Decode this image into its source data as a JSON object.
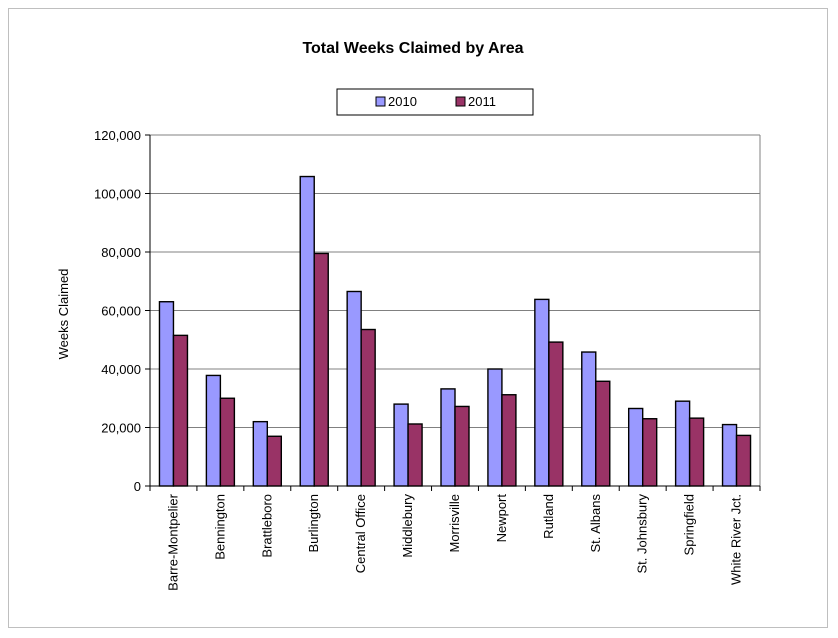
{
  "chart_data": {
    "type": "bar",
    "title": "Total Weeks Claimed by Area",
    "xlabel": "",
    "ylabel": "Weeks Claimed",
    "ylim": [
      0,
      120000
    ],
    "yticks": [
      0,
      20000,
      40000,
      60000,
      80000,
      100000,
      120000
    ],
    "ytick_labels": [
      "0",
      "20,000",
      "40,000",
      "60,000",
      "80,000",
      "100,000",
      "120,000"
    ],
    "grid": true,
    "legend": "top-center",
    "categories": [
      "Barre-Montpelier",
      "Bennington",
      "Brattleboro",
      "Burlington",
      "Central Office",
      "Middlebury",
      "Morrisville",
      "Newport",
      "Rutland",
      "St. Albans",
      "St. Johnsbury",
      "Springfield",
      "White River Jct."
    ],
    "series": [
      {
        "name": "2010",
        "color": "#9999ff",
        "values": [
          63000,
          37800,
          22000,
          105800,
          66500,
          28000,
          33200,
          40000,
          63800,
          45800,
          26500,
          29000,
          21000
        ]
      },
      {
        "name": "2011",
        "color": "#993366",
        "values": [
          51500,
          30000,
          17000,
          79500,
          53500,
          21200,
          27200,
          31200,
          49200,
          35800,
          23000,
          23200,
          17300
        ]
      }
    ]
  }
}
